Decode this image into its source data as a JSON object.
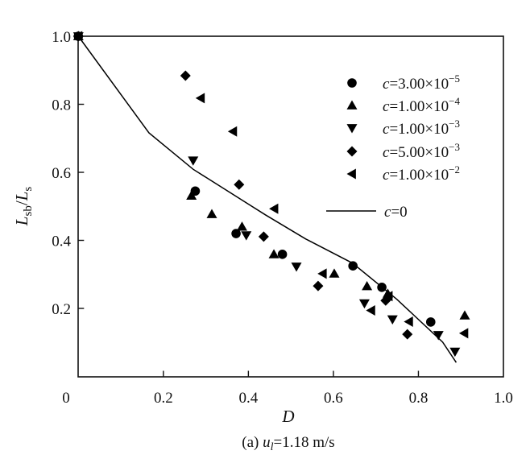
{
  "chart_data": {
    "type": "scatter",
    "xlabel": "D",
    "ylabel": {
      "main1": "L",
      "sub1": "sb",
      "slash": "/",
      "main2": "L",
      "sub2": "s"
    },
    "caption": {
      "prefix": "(a) ",
      "var": "u",
      "sub": "l",
      "rest": "=1.18 m/s"
    },
    "xlim": [
      0,
      1.0
    ],
    "ylim": [
      0,
      1.0
    ],
    "xticks": [
      "0",
      "0.2",
      "0.4",
      "0.6",
      "0.8",
      "1.0"
    ],
    "yticks": [
      "1.0",
      "0.8",
      "0.6",
      "0.4",
      "0.2"
    ],
    "grid": false,
    "legend_placement": "top-right",
    "series": [
      {
        "var": "c",
        "mantissa": "=3.00×10",
        "exp": "−5",
        "marker": "circle",
        "points": [
          [
            0,
            1.0
          ],
          [
            0.275,
            0.545
          ],
          [
            0.371,
            0.42
          ],
          [
            0.48,
            0.359
          ],
          [
            0.646,
            0.325
          ],
          [
            0.714,
            0.262
          ],
          [
            0.829,
            0.16
          ]
        ]
      },
      {
        "var": "c",
        "mantissa": "=1.00×10",
        "exp": "−4",
        "marker": "triangle-up",
        "points": [
          [
            0,
            1.0
          ],
          [
            0.266,
            0.531
          ],
          [
            0.314,
            0.477
          ],
          [
            0.385,
            0.44
          ],
          [
            0.46,
            0.359
          ],
          [
            0.602,
            0.302
          ],
          [
            0.679,
            0.265
          ],
          [
            0.728,
            0.243
          ],
          [
            0.909,
            0.179
          ]
        ]
      },
      {
        "var": "c",
        "mantissa": "=1.00×10",
        "exp": "−3",
        "marker": "triangle-down",
        "points": [
          [
            0,
            1.0
          ],
          [
            0.27,
            0.635
          ],
          [
            0.395,
            0.415
          ],
          [
            0.513,
            0.323
          ],
          [
            0.673,
            0.215
          ],
          [
            0.739,
            0.168
          ],
          [
            0.847,
            0.122
          ],
          [
            0.886,
            0.073
          ]
        ]
      },
      {
        "var": "c",
        "mantissa": "=5.00×10",
        "exp": "−3",
        "marker": "diamond",
        "points": [
          [
            0,
            1.0
          ],
          [
            0.252,
            0.884
          ],
          [
            0.378,
            0.564
          ],
          [
            0.436,
            0.411
          ],
          [
            0.564,
            0.266
          ],
          [
            0.723,
            0.223
          ],
          [
            0.774,
            0.124
          ]
        ]
      },
      {
        "var": "c",
        "mantissa": "=1.00×10",
        "exp": "−2",
        "marker": "triangle-left",
        "points": [
          [
            0,
            1.0
          ],
          [
            0.288,
            0.818
          ],
          [
            0.364,
            0.72
          ],
          [
            0.461,
            0.493
          ],
          [
            0.575,
            0.302
          ],
          [
            0.689,
            0.194
          ],
          [
            0.73,
            0.236
          ],
          [
            0.778,
            0.161
          ],
          [
            0.908,
            0.127
          ]
        ]
      }
    ],
    "line": {
      "var": "c",
      "label": "=0",
      "points": [
        [
          0,
          1.0
        ],
        [
          0.166,
          0.716
        ],
        [
          0.27,
          0.609
        ],
        [
          0.44,
          0.475
        ],
        [
          0.535,
          0.404
        ],
        [
          0.645,
          0.333
        ],
        [
          0.749,
          0.227
        ],
        [
          0.857,
          0.101
        ],
        [
          0.889,
          0.041
        ]
      ]
    },
    "colors": {
      "marker": "#000000",
      "line": "#000000"
    }
  }
}
